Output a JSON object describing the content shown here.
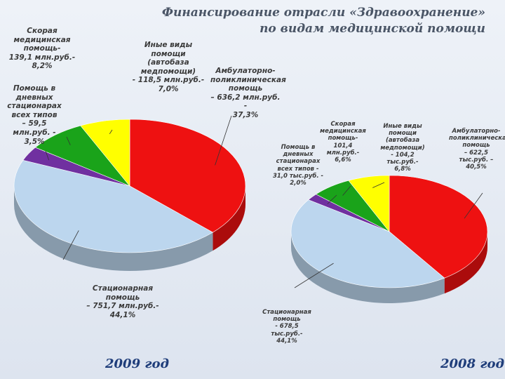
{
  "header": {
    "title": [
      "Финансирование отрасли «Здравоохранение»",
      "по видам медицинской помощи"
    ]
  },
  "chart_data": [
    {
      "type": "pie3d",
      "subtitle": "2009 год",
      "categories": [
        "Амбулаторно-поликлиническая помощь",
        "Стационарная помощь",
        "Помощь в дневных стационарах всех типов",
        "Скорая медицинская помощь-",
        "Иные виды помощи (автобаза медпомощи)"
      ],
      "amount_labels": [
        "– 636,2 млн.руб. -",
        "– 751,7 млн.руб.-",
        "– 59,5 млн.руб. -",
        "139,1 млн.руб.-",
        "- 118,5 млн.руб.-"
      ],
      "values": [
        37.3,
        44.1,
        3.5,
        8.2,
        7.0
      ],
      "value_labels": [
        "37,3%",
        "44,1%",
        "3,5%",
        "8,2%",
        "7,0%"
      ],
      "colors": [
        "#ee1111",
        "#bcd6ee",
        "#7030a0",
        "#1aa31a",
        "#ffff00"
      ]
    },
    {
      "type": "pie3d",
      "subtitle": "2008 год",
      "categories": [
        "Амбулаторно-поликлиническая помощь",
        "Стационарная помощь",
        "Помощь в дневных стационарах всех типов -",
        "Скорая медицинская помощь-",
        "Иные виды помощи (автобаза медпомощи)"
      ],
      "amount_labels": [
        "– 622,5 тыс.руб. –",
        "- 678,5 тыс.руб.-",
        "31,0 тыс.руб. -",
        "101,4 млн.руб.-",
        "- 104,2 тыс.руб.-"
      ],
      "values": [
        40.5,
        44.1,
        2.0,
        6.6,
        6.8
      ],
      "value_labels": [
        "40,5%",
        "44,1%",
        "2,0%",
        "6,6%",
        "6,8%"
      ],
      "colors": [
        "#ee1111",
        "#bcd6ee",
        "#7030a0",
        "#1aa31a",
        "#ffff00"
      ]
    }
  ]
}
